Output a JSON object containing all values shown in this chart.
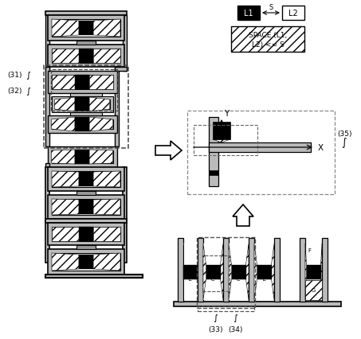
{
  "white": "#ffffff",
  "black": "#000000",
  "gray_frame": "#bbbbbb",
  "gray_bar": "#999999",
  "label_31": "(31)",
  "label_32": "(32)",
  "label_33": "(33)",
  "label_34": "(34)",
  "label_35": "(35)",
  "legend_text1": "SPACE (L1,",
  "legend_text2": "L2) <= S",
  "legend_L1": "L1",
  "legend_L2": "L2",
  "legend_S": "S"
}
